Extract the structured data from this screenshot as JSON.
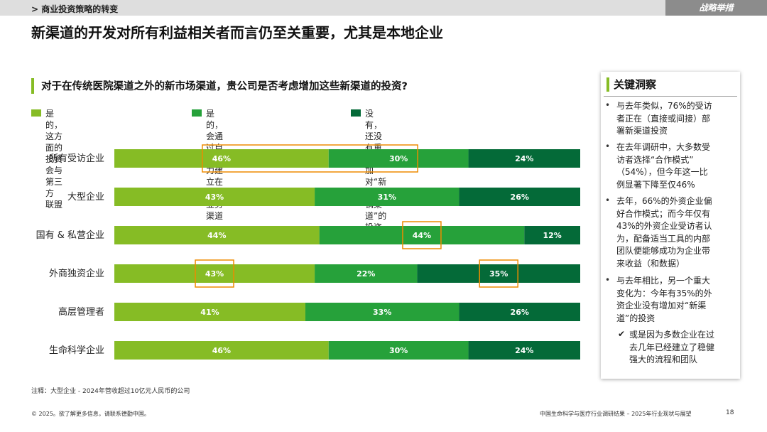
{
  "header": {
    "section": "> 商业投资策略的转变",
    "tag": "战略举措"
  },
  "title": "新渠道的开发对所有利益相关者而言仍至关重要，尤其是本地企业",
  "question": "对于在传统医院渠道之外的新市场渠道，贵公司是否考虑增加这些新渠道的投资?",
  "legend": [
    {
      "line1": "是的，这方面的投资会与第三方",
      "line2": "联盟",
      "color": "#86bc25"
    },
    {
      "line1": "是的，会通过自身能力建立在线",
      "line2": "业务渠道",
      "color": "#26a13a"
    },
    {
      "line1": "没有，还没有重点增加对“新分",
      "line2": "销渠道”的投资",
      "color": "#046a38"
    }
  ],
  "chart_data": {
    "type": "bar",
    "orientation": "horizontal",
    "stacked": true,
    "title": "对于在传统医院渠道之外的新市场渠道，贵公司是否考虑增加这些新渠道的投资?",
    "xlabel": "",
    "ylabel": "",
    "xlim": [
      0,
      100
    ],
    "categories": [
      "所有受访企业",
      "大型企业",
      "国有 & 私营企业",
      "外商独资企业",
      "高层管理者",
      "生命科学企业"
    ],
    "series": [
      {
        "name": "是的，这方面的投资会与第三方联盟",
        "color": "#86bc25",
        "values": [
          46,
          43,
          44,
          43,
          41,
          46
        ]
      },
      {
        "name": "是的，会通过自身能力建立在线业务渠道",
        "color": "#26a13a",
        "values": [
          30,
          31,
          44,
          22,
          33,
          30
        ]
      },
      {
        "name": "没有，还没有重点增加对“新分销渠道”的投资",
        "color": "#046a38",
        "values": [
          24,
          26,
          12,
          35,
          26,
          24
        ]
      }
    ],
    "highlights": [
      {
        "category": "所有受访企业",
        "series": [
          0,
          1
        ]
      },
      {
        "category": "国有 & 私营企业",
        "series": [
          1
        ]
      },
      {
        "category": "外商独资企业",
        "series": [
          0
        ]
      },
      {
        "category": "外商独资企业",
        "series": [
          2
        ]
      }
    ],
    "highlight_color": "#ed8b00"
  },
  "insights": {
    "title": "关键洞察",
    "bullets": [
      [
        "与去年类似，76%的受访",
        "者正在（直接或间接）部",
        "署新渠道投资"
      ],
      [
        "在去年调研中，大多数受",
        "访者选择“合作模式”",
        "（54%），但今年这一比",
        "例显著下降至仅46%"
      ],
      [
        "去年，66%的外资企业偏",
        "好合作模式；而今年仅有",
        "43%的外资企业受访者认",
        "为，配备适当工具的内部",
        "团队便能够成功为企业带",
        "来收益（和数据）"
      ],
      [
        "与去年相比，另一个重大",
        "变化为：今年有35%的外",
        "资企业没有增加对“新渠",
        "道”的投资"
      ]
    ],
    "check_item": [
      "或是因为多数企业在过",
      "去几年已经建立了稳健",
      "强大的流程和团队"
    ]
  },
  "note": "注释：大型企业 - 2024年营收超过10亿元人民币的公司",
  "footer": {
    "left": "© 2025。欲了解更多信息，请联系德勤中国。",
    "right": "中国生命科学与医疗行业调研结果 – 2025年行业现状与展望",
    "page": "18"
  }
}
